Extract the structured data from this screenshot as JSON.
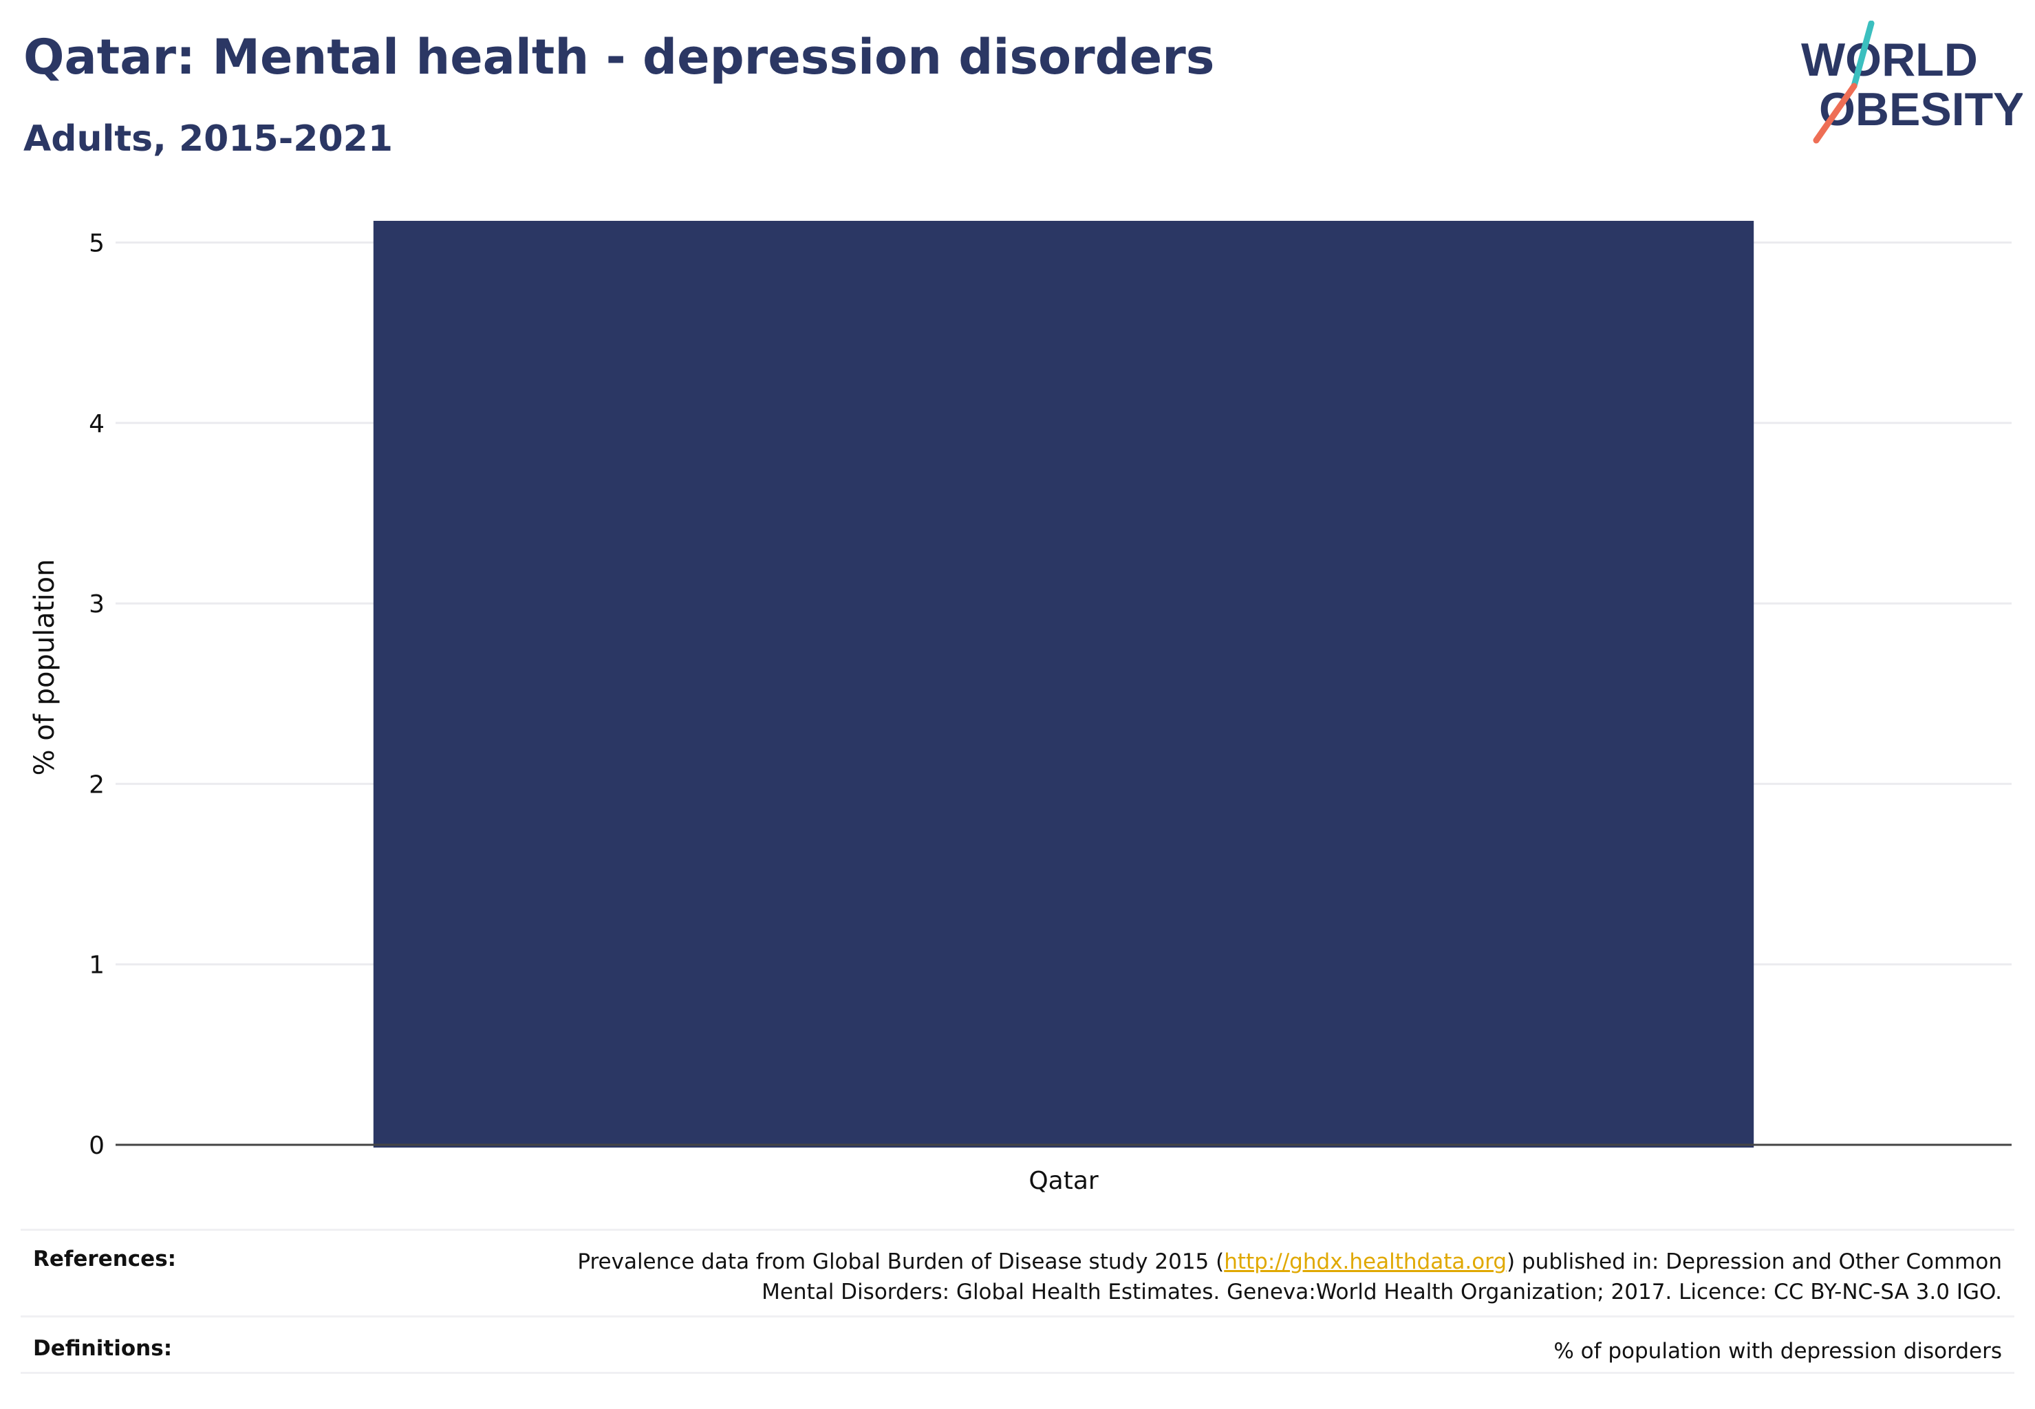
{
  "header": {
    "title": "Qatar: Mental health - depression disorders",
    "subtitle": "Adults, 2015-2021"
  },
  "logo": {
    "line1": "WORLD",
    "line2": "OBESITY",
    "accent_teal": "#3bbfbf",
    "accent_coral": "#ee6e55",
    "text_color": "#2b3764"
  },
  "chart_data": {
    "type": "bar",
    "categories": [
      "Qatar"
    ],
    "values": [
      5.12
    ],
    "title": "Qatar: Mental health - depression disorders",
    "subtitle": "Adults, 2015-2021",
    "xlabel": "",
    "ylabel": "% of population",
    "ylim": [
      0,
      5.2
    ],
    "yticks": [
      0,
      1,
      2,
      3,
      4,
      5
    ],
    "grid": true,
    "bar_color": "#2b3764"
  },
  "footer": {
    "references_label": "References:",
    "references_pre": "Prevalence data from Global Burden of Disease study 2015 (",
    "references_link": "http://ghdx.healthdata.org",
    "references_post": ") published in: Depression and Other Common",
    "references_line2": "Mental Disorders: Global Health Estimates. Geneva:World Health Organization; 2017. Licence: CC BY-NC-SA 3.0 IGO.",
    "definitions_label": "Definitions:",
    "definitions_text": "% of population with depression disorders"
  }
}
